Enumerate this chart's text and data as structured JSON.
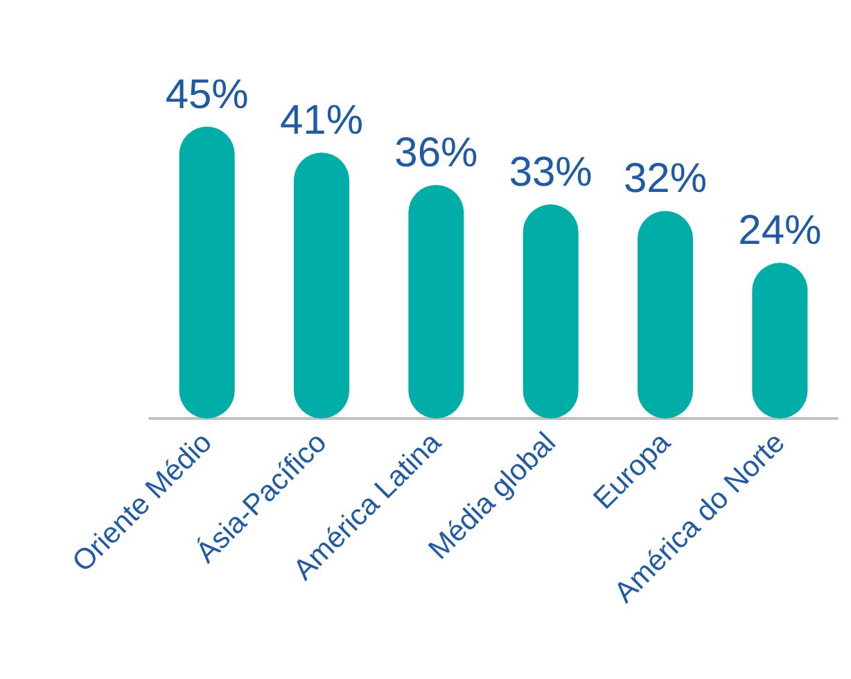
{
  "chart_data": {
    "type": "bar",
    "categories": [
      "Oriente Médio",
      "Ásia-Pacífico",
      "América Latina",
      "Média global",
      "Europa",
      "América do Norte"
    ],
    "values": [
      45,
      41,
      36,
      33,
      32,
      24
    ],
    "value_labels": [
      "45%",
      "41%",
      "36%",
      "33%",
      "32%",
      "24%"
    ],
    "color": "#00aea7"
  }
}
